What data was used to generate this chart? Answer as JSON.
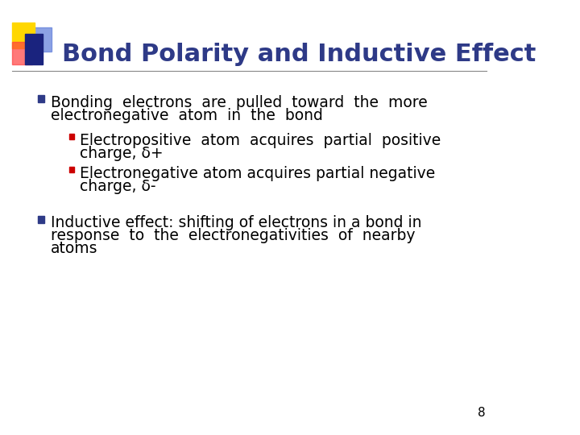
{
  "title": "Bond Polarity and Inductive Effect",
  "title_color": "#2E3A87",
  "title_fontsize": 22,
  "bg_color": "#FFFFFF",
  "slide_number": "8",
  "bullet1_marker_color": "#2E3A87",
  "bullet2_marker_color": "#CC0000",
  "bullet1_text_line1": "Bonding  electrons  are  pulled  toward  the  more",
  "bullet1_text_line2": "electronegative  atom  in  the  bond",
  "sub_bullet1_line1": "Electropositive  atom  acquires  partial  positive",
  "sub_bullet1_line2": "charge, δ+",
  "sub_bullet2_line1": "Electronegative atom acquires partial negative",
  "sub_bullet2_line2": "charge, δ-",
  "bullet2_text_line1": "Inductive effect: shifting of electrons in a bond in",
  "bullet2_text_line2": "response  to  the  electronegativities  of  nearby",
  "bullet2_text_line3": "atoms",
  "body_fontsize": 13.5,
  "body_color": "#000000",
  "deco_yellow": "#FFD700",
  "deco_red": "#FF4040",
  "deco_blue_dark": "#1A237E",
  "deco_blue_light": "#5C7BD9",
  "line_color": "#888888"
}
